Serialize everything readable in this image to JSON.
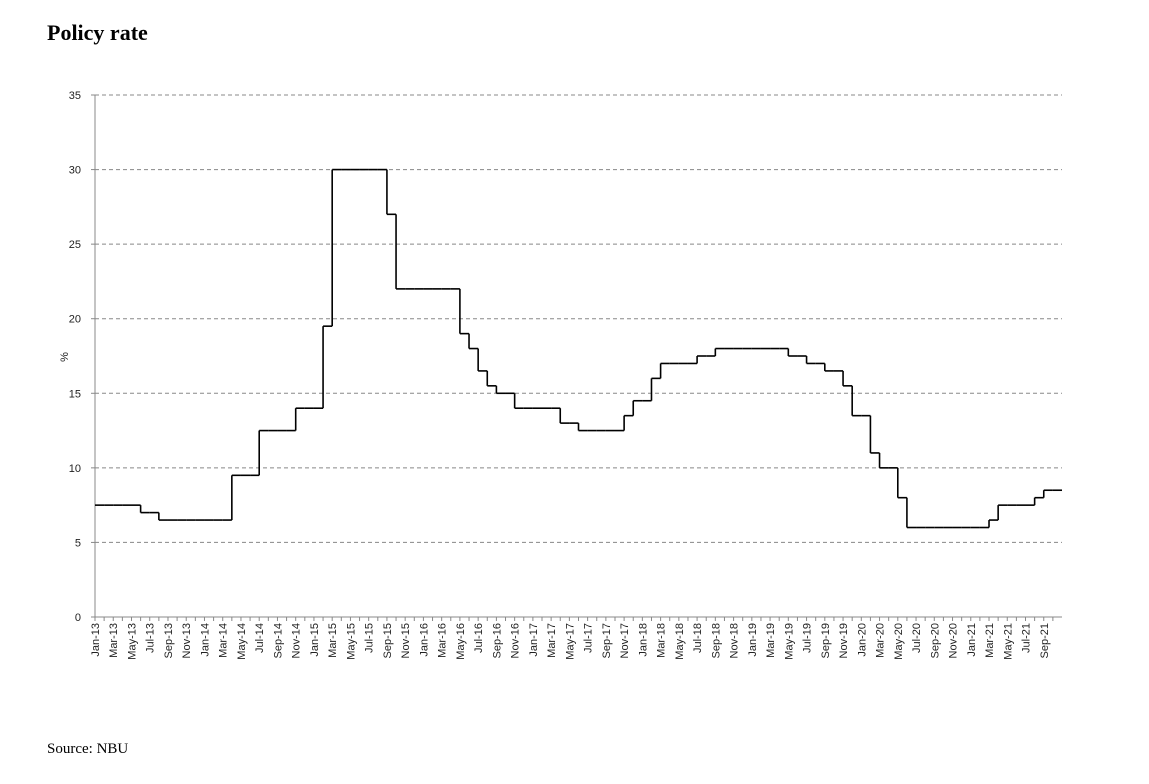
{
  "chart_data": {
    "type": "step",
    "title": "Policy rate",
    "y_label": "%",
    "source": "Source: NBU",
    "color": "#000000",
    "grid": true,
    "ylim": [
      0,
      35
    ],
    "yticks": [
      0,
      5,
      10,
      15,
      20,
      25,
      30,
      35
    ],
    "categories": [
      "Jan-13",
      null,
      "Mar-13",
      null,
      "May-13",
      null,
      "Jul-13",
      null,
      "Sep-13",
      null,
      "Nov-13",
      null,
      "Jan-14",
      null,
      "Mar-14",
      null,
      "May-14",
      null,
      "Jul-14",
      null,
      "Sep-14",
      null,
      "Nov-14",
      null,
      "Jan-15",
      null,
      "Mar-15",
      null,
      "May-15",
      null,
      "Jul-15",
      null,
      "Sep-15",
      null,
      "Nov-15",
      null,
      "Jan-16",
      null,
      "Mar-16",
      null,
      "May-16",
      null,
      "Jul-16",
      null,
      "Sep-16",
      null,
      "Nov-16",
      null,
      "Jan-17",
      null,
      "Mar-17",
      null,
      "May-17",
      null,
      "Jul-17",
      null,
      "Sep-17",
      null,
      "Nov-17",
      null,
      "Jan-18",
      null,
      "Mar-18",
      null,
      "May-18",
      null,
      "Jul-18",
      null,
      "Sep-18",
      null,
      "Nov-18",
      null,
      "Jan-19",
      null,
      "Mar-19",
      null,
      "May-19",
      null,
      "Jul-19",
      null,
      "Sep-19",
      null,
      "Nov-19",
      null,
      "Jan-20",
      null,
      "Mar-20",
      null,
      "May-20",
      null,
      "Jul-20",
      null,
      "Sep-20",
      null,
      "Nov-20",
      null,
      "Jan-21",
      null,
      "Mar-21",
      null,
      "May-21",
      null,
      "Jul-21",
      null,
      "Sep-21",
      null
    ],
    "values": [
      7.5,
      7.5,
      7.5,
      7.5,
      7.5,
      7,
      7,
      6.5,
      6.5,
      6.5,
      6.5,
      6.5,
      6.5,
      6.5,
      6.5,
      9.5,
      9.5,
      9.5,
      12.5,
      12.5,
      12.5,
      12.5,
      14,
      14,
      14,
      19.5,
      30,
      30,
      30,
      30,
      30,
      30,
      27,
      22,
      22,
      22,
      22,
      22,
      22,
      22,
      19,
      18,
      16.5,
      15.5,
      15,
      15,
      14,
      14,
      14,
      14,
      14,
      13,
      13,
      12.5,
      12.5,
      12.5,
      12.5,
      12.5,
      13.5,
      14.5,
      14.5,
      16,
      17,
      17,
      17,
      17,
      17.5,
      17.5,
      18,
      18,
      18,
      18,
      18,
      18,
      18,
      18,
      17.5,
      17.5,
      17,
      17,
      16.5,
      16.5,
      15.5,
      13.5,
      13.5,
      11,
      10,
      10,
      8,
      6,
      6,
      6,
      6,
      6,
      6,
      6,
      6,
      6,
      6.5,
      7.5,
      7.5,
      7.5,
      7.5,
      8,
      8.5,
      8.5
    ]
  }
}
